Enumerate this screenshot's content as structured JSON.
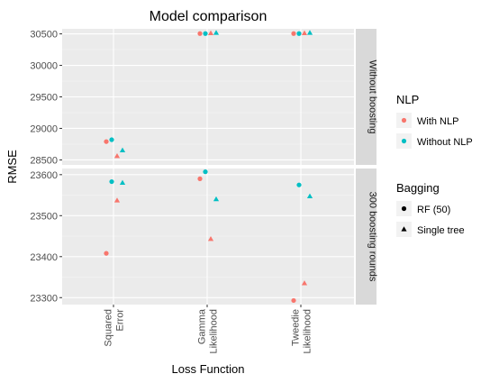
{
  "chart_data": {
    "type": "scatter",
    "title": "Model comparison",
    "xlabel": "Loss Function",
    "ylabel": "RMSE",
    "categories": [
      "Squared\nError",
      "Gamma\nLikelihood",
      "Tweedie\nLikelihood"
    ],
    "facets": [
      {
        "label": "Without boosting",
        "ylim": [
          28420,
          30580
        ],
        "yticks": [
          28500,
          29000,
          29500,
          30000,
          30500
        ],
        "points": [
          {
            "category": 0,
            "nlp": "With NLP",
            "bagging": "RF (50)",
            "y": 28790
          },
          {
            "category": 0,
            "nlp": "Without NLP",
            "bagging": "RF (50)",
            "y": 28820
          },
          {
            "category": 0,
            "nlp": "With NLP",
            "bagging": "Single tree",
            "y": 28560
          },
          {
            "category": 0,
            "nlp": "Without NLP",
            "bagging": "Single tree",
            "y": 28650
          },
          {
            "category": 1,
            "nlp": "With NLP",
            "bagging": "RF (50)",
            "y": 30505
          },
          {
            "category": 1,
            "nlp": "Without NLP",
            "bagging": "RF (50)",
            "y": 30505
          },
          {
            "category": 1,
            "nlp": "With NLP",
            "bagging": "Single tree",
            "y": 30510
          },
          {
            "category": 1,
            "nlp": "Without NLP",
            "bagging": "Single tree",
            "y": 30515
          },
          {
            "category": 2,
            "nlp": "With NLP",
            "bagging": "RF (50)",
            "y": 30505
          },
          {
            "category": 2,
            "nlp": "Without NLP",
            "bagging": "RF (50)",
            "y": 30505
          },
          {
            "category": 2,
            "nlp": "With NLP",
            "bagging": "Single tree",
            "y": 30510
          },
          {
            "category": 2,
            "nlp": "Without NLP",
            "bagging": "Single tree",
            "y": 30515
          }
        ]
      },
      {
        "label": "300 boosting rounds",
        "ylim": [
          23283,
          23615
        ],
        "yticks": [
          23300,
          23400,
          23500,
          23600
        ],
        "points": [
          {
            "category": 0,
            "nlp": "With NLP",
            "bagging": "RF (50)",
            "y": 23408
          },
          {
            "category": 0,
            "nlp": "Without NLP",
            "bagging": "RF (50)",
            "y": 23583
          },
          {
            "category": 0,
            "nlp": "With NLP",
            "bagging": "Single tree",
            "y": 23537
          },
          {
            "category": 0,
            "nlp": "Without NLP",
            "bagging": "Single tree",
            "y": 23580
          },
          {
            "category": 1,
            "nlp": "With NLP",
            "bagging": "RF (50)",
            "y": 23590
          },
          {
            "category": 1,
            "nlp": "Without NLP",
            "bagging": "RF (50)",
            "y": 23607
          },
          {
            "category": 1,
            "nlp": "With NLP",
            "bagging": "Single tree",
            "y": 23443
          },
          {
            "category": 1,
            "nlp": "Without NLP",
            "bagging": "Single tree",
            "y": 23540
          },
          {
            "category": 2,
            "nlp": "With NLP",
            "bagging": "RF (50)",
            "y": 23293
          },
          {
            "category": 2,
            "nlp": "Without NLP",
            "bagging": "RF (50)",
            "y": 23575
          },
          {
            "category": 2,
            "nlp": "With NLP",
            "bagging": "Single tree",
            "y": 23335
          },
          {
            "category": 2,
            "nlp": "Without NLP",
            "bagging": "Single tree",
            "y": 23547
          }
        ]
      }
    ],
    "legends": [
      {
        "title": "NLP",
        "items": [
          {
            "label": "With NLP",
            "color": "#F8766D"
          },
          {
            "label": "Without NLP",
            "color": "#00BFC4"
          }
        ]
      },
      {
        "title": "Bagging",
        "items": [
          {
            "label": "RF (50)",
            "shape": "circle"
          },
          {
            "label": "Single tree",
            "shape": "triangle"
          }
        ]
      }
    ],
    "legend_position": "right",
    "grid": true,
    "colors": {
      "With NLP": "#F8766D",
      "Without NLP": "#00BFC4"
    }
  }
}
